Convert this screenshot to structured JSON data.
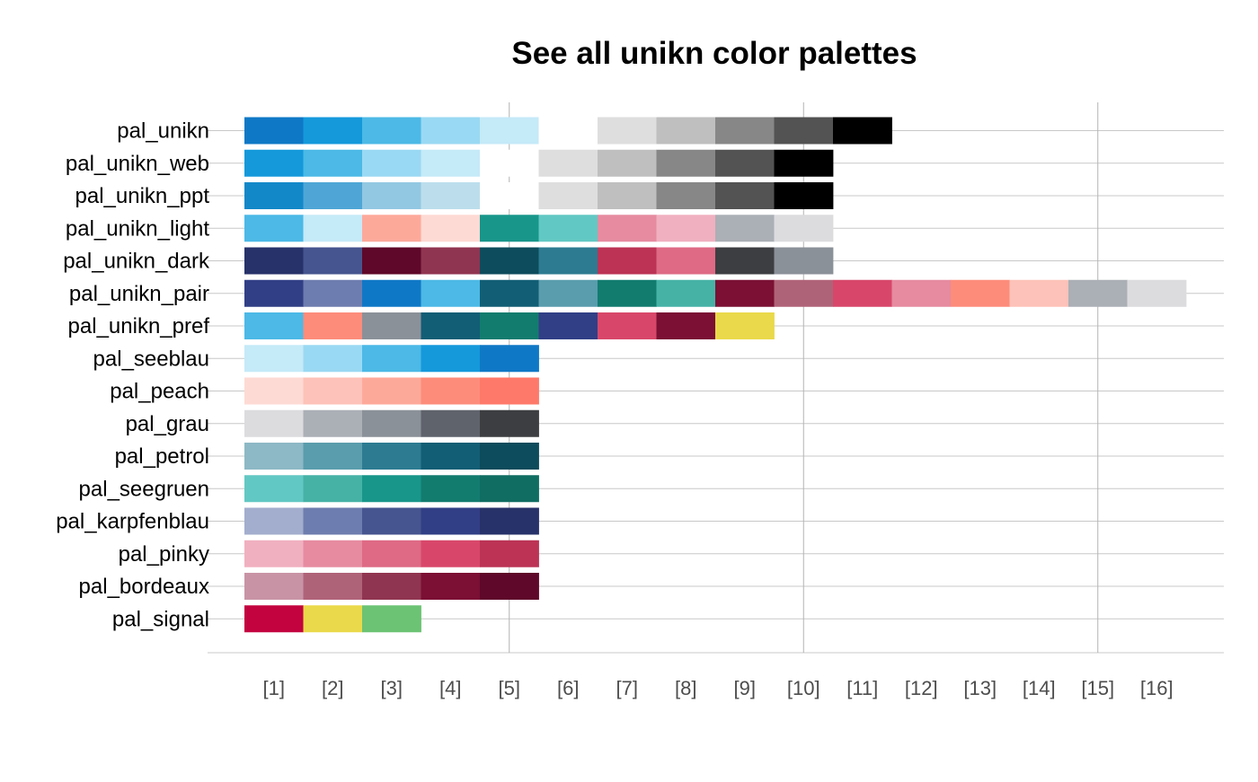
{
  "chart_data": {
    "type": "heatmap",
    "title": "See all unikn color palettes",
    "xlabel": "",
    "ylabel": "",
    "x_ticks": [
      "[1]",
      "[2]",
      "[3]",
      "[4]",
      "[5]",
      "[6]",
      "[7]",
      "[8]",
      "[9]",
      "[10]",
      "[11]",
      "[12]",
      "[13]",
      "[14]",
      "[15]",
      "[16]"
    ],
    "x_gridlines_at": [
      5,
      10,
      15
    ],
    "grid": true,
    "legend": "none",
    "palettes": [
      {
        "name": "pal_unikn",
        "colors": [
          "#0F78C6",
          "#1599DB",
          "#4CB9E6",
          "#9AD9F3",
          "#C5EAF8",
          "#FFFFFF",
          "#DEDEDE",
          "#BFBFBF",
          "#878787",
          "#535353",
          "#000000"
        ]
      },
      {
        "name": "pal_unikn_web",
        "colors": [
          "#1599DB",
          "#4CB9E6",
          "#9AD9F3",
          "#C5EAF8",
          "#FFFFFF",
          "#DEDEDE",
          "#BFBFBF",
          "#878787",
          "#535353",
          "#000000"
        ]
      },
      {
        "name": "pal_unikn_ppt",
        "colors": [
          "#1388C9",
          "#4FA6D6",
          "#93C8E2",
          "#BCDEEC",
          "#FFFFFF",
          "#DEDEDE",
          "#BFBFBF",
          "#878787",
          "#535353",
          "#000000"
        ]
      },
      {
        "name": "pal_unikn_light",
        "colors": [
          "#4CB9E6",
          "#C5EAF8",
          "#FDA99A",
          "#FEDAD4",
          "#18968A",
          "#62C8C3",
          "#E68BA0",
          "#F0B0BF",
          "#ABAFB6",
          "#DCDCDF"
        ]
      },
      {
        "name": "pal_unikn_dark",
        "colors": [
          "#27326A",
          "#46558F",
          "#5F0829",
          "#903551",
          "#0D4C5C",
          "#2D7B91",
          "#BC3355",
          "#DE6A85",
          "#3C3E41",
          "#8B9199"
        ]
      },
      {
        "name": "pal_unikn_pair",
        "colors": [
          "#313F86",
          "#6E7DAF",
          "#0F78C6",
          "#4CB9E6",
          "#125E75",
          "#5A9DAD",
          "#127C6F",
          "#46B2A6",
          "#7B1034",
          "#AF6379",
          "#D8476A",
          "#E68BA0",
          "#FD8C7B",
          "#FDC2B9",
          "#ABAFB6",
          "#DCDCDF"
        ]
      },
      {
        "name": "pal_unikn_pref",
        "colors": [
          "#4CB9E6",
          "#FD8C7B",
          "#8B9199",
          "#125E75",
          "#127C6F",
          "#313F86",
          "#D8476A",
          "#7B1034",
          "#EAD94A"
        ]
      },
      {
        "name": "pal_seeblau",
        "colors": [
          "#C5EAF8",
          "#9AD9F3",
          "#4CB9E6",
          "#1599DB",
          "#0F78C6"
        ]
      },
      {
        "name": "pal_peach",
        "colors": [
          "#FEDAD4",
          "#FDC2B9",
          "#FDA99A",
          "#FD8C7B",
          "#FE7969"
        ]
      },
      {
        "name": "pal_grau",
        "colors": [
          "#DCDCDF",
          "#ABAFB6",
          "#8B9199",
          "#5F636C",
          "#3C3E41"
        ]
      },
      {
        "name": "pal_petrol",
        "colors": [
          "#8DB8C5",
          "#5A9DAD",
          "#2D7B91",
          "#125E75",
          "#0D4C5C"
        ]
      },
      {
        "name": "pal_seegruen",
        "colors": [
          "#62C8C3",
          "#46B2A6",
          "#18968A",
          "#127C6F",
          "#106D62"
        ]
      },
      {
        "name": "pal_karpfenblau",
        "colors": [
          "#A3ADCD",
          "#6E7DAF",
          "#46558F",
          "#313F86",
          "#27326A"
        ]
      },
      {
        "name": "pal_pinky",
        "colors": [
          "#F0B0BF",
          "#E68BA0",
          "#DE6A85",
          "#D8476A",
          "#BC3355"
        ]
      },
      {
        "name": "pal_bordeaux",
        "colors": [
          "#C894A5",
          "#AF6379",
          "#903551",
          "#7B1034",
          "#5F0829"
        ]
      },
      {
        "name": "pal_signal",
        "colors": [
          "#C3033F",
          "#EAD94A",
          "#6CC373"
        ]
      }
    ]
  }
}
